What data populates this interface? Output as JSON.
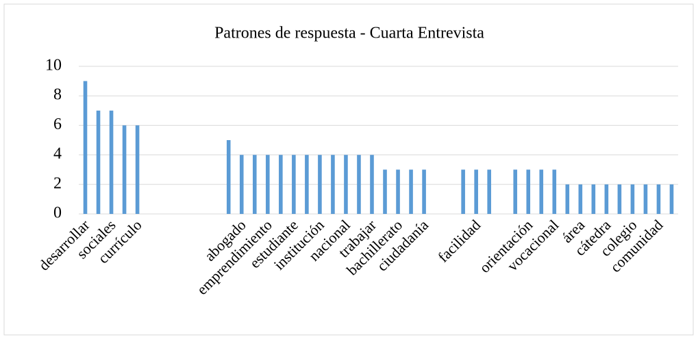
{
  "chart_data": {
    "type": "bar",
    "title": "Patrones de respuesta - Cuarta Entrevista",
    "categories": [
      "desarrollar",
      null,
      "sociales",
      null,
      "currículo",
      null,
      null,
      null,
      null,
      null,
      null,
      null,
      "abogado",
      null,
      "emprendimiento",
      null,
      "estudiante",
      null,
      "institución",
      null,
      "nacional",
      null,
      "trabajar",
      null,
      "bachillerato",
      null,
      "ciudadanía",
      null,
      null,
      null,
      "facilidad",
      null,
      null,
      null,
      "orientación",
      null,
      "vocacional",
      null,
      "área",
      null,
      "cátedra",
      null,
      "colegio",
      null,
      "comunidad",
      null
    ],
    "values": [
      9,
      7,
      7,
      6,
      6,
      0,
      0,
      0,
      0,
      0,
      0,
      5,
      4,
      4,
      4,
      4,
      4,
      4,
      4,
      4,
      4,
      4,
      4,
      3,
      3,
      3,
      3,
      0,
      0,
      3,
      3,
      3,
      0,
      3,
      3,
      3,
      3,
      2,
      2,
      2,
      2,
      2,
      2,
      2,
      2,
      2
    ],
    "color": "#5b9bd5",
    "ylim": [
      0,
      10
    ],
    "yticks": [
      0,
      2,
      4,
      6,
      8,
      10
    ],
    "grid": true
  }
}
